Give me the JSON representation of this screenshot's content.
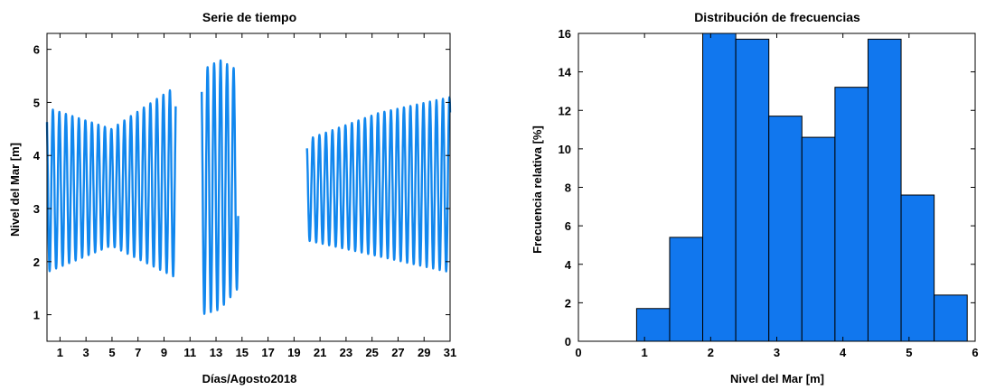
{
  "chart_data": [
    {
      "type": "line",
      "title": "Serie de tiempo",
      "xlabel": "Días/Agosto2018",
      "ylabel": "Nivel del Mar [m]",
      "xlim": [
        0,
        31
      ],
      "ylim": [
        0.5,
        6.3
      ],
      "xticks": [
        1,
        3,
        5,
        7,
        9,
        11,
        13,
        15,
        17,
        19,
        21,
        23,
        25,
        27,
        29,
        31
      ],
      "yticks": [
        1,
        2,
        3,
        4,
        5,
        6
      ],
      "grid": false,
      "color": "#1187ee",
      "series": [
        {
          "description_of_signal": "semidiurnal tide, two cycles per day, gaps with no data",
          "segments": [
            {
              "x_start": 0.0,
              "x_end": 9.9,
              "periods_per_day": 2,
              "max_start": 4.9,
              "max_mid": 4.5,
              "max_end": 5.3,
              "min_start": 1.8,
              "min_mid": 2.3,
              "min_end": 1.7
            },
            {
              "x_start": 11.9,
              "x_end": 14.7,
              "periods_per_day": 2,
              "max_start": 5.6,
              "max_mid": 5.8,
              "max_end": 5.6,
              "min_start": 1.0,
              "min_mid": 1.1,
              "min_end": 1.5
            },
            {
              "x_start": 20.0,
              "x_end": 31.0,
              "periods_per_day": 2,
              "max_start": 4.3,
              "max_mid": 4.8,
              "max_end": 5.1,
              "min_start": 2.4,
              "min_mid": 2.1,
              "min_end": 1.8
            }
          ]
        }
      ]
    },
    {
      "type": "bar",
      "title": "Distribución de frecuencias",
      "xlabel": "Nivel del Mar [m]",
      "ylabel": "Frecuencia relativa [%]",
      "xlim": [
        0,
        6
      ],
      "ylim": [
        0,
        16
      ],
      "xticks": [
        0,
        1,
        2,
        3,
        4,
        5,
        6
      ],
      "yticks": [
        0,
        2,
        4,
        6,
        8,
        10,
        12,
        14,
        16
      ],
      "grid": false,
      "color": "#1177ee",
      "bin_edges": [
        0.88,
        1.38,
        1.88,
        2.38,
        2.88,
        3.38,
        3.88,
        4.38,
        4.88,
        5.38,
        5.88
      ],
      "values": [
        1.7,
        5.4,
        16.0,
        15.7,
        11.7,
        10.6,
        13.2,
        15.7,
        7.6,
        2.4
      ]
    }
  ]
}
